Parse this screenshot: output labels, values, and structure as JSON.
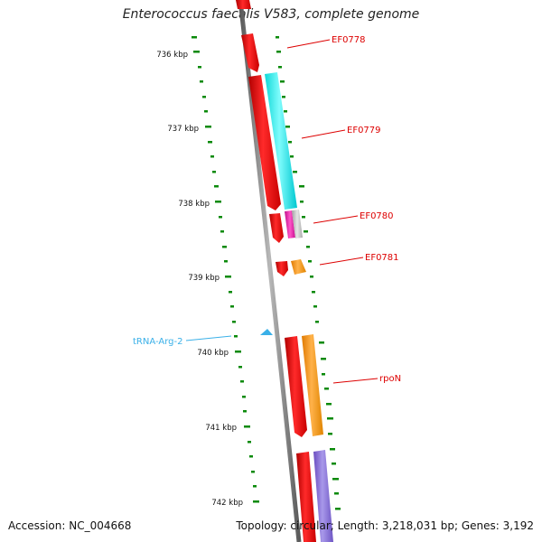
{
  "title": "Enterococcus faecalis V583, complete genome",
  "accession": "Accession: NC_004668",
  "summary": "Topology: circular; Length: 3,218,031 bp; Genes: 3,192",
  "colors": {
    "backbone": "#808080",
    "gc_ticks": "#0a8a0a",
    "cds": "#ee0000",
    "trna": "#3ab0e8",
    "label_line": "#dd0000",
    "trna_label": "#3ab0e8"
  },
  "kbp_labels": [
    "736 kbp",
    "737 kbp",
    "738 kbp",
    "739 kbp",
    "740 kbp",
    "741 kbp",
    "742 kbp"
  ],
  "gene_labels": [
    "EF0778",
    "EF0779",
    "EF0780",
    "EF0781",
    "rpoN"
  ],
  "trna_label": "tRNA-Arg-2"
}
